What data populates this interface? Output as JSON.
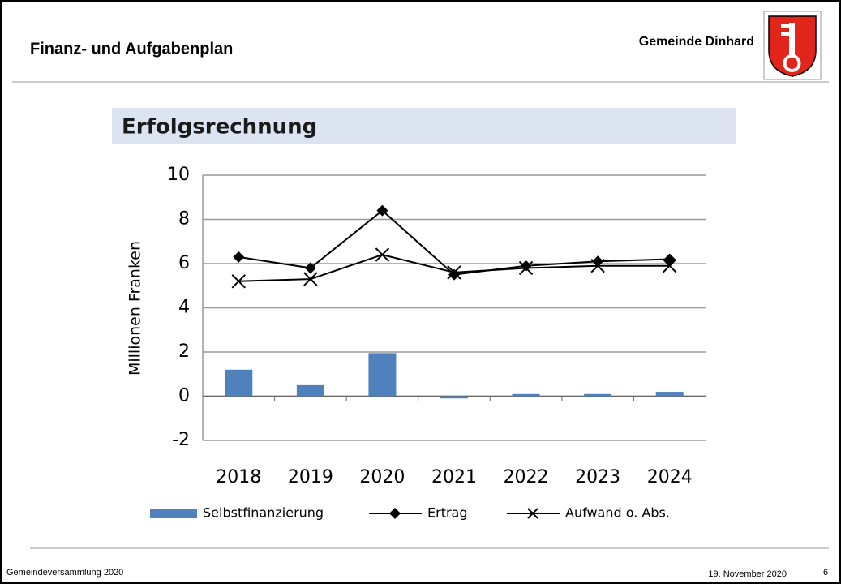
{
  "header": {
    "title": "Finanz- und Aufgabenplan",
    "organization": "Gemeinde Dinhard"
  },
  "footer": {
    "left": "Gemeindeversammlung 2020",
    "date": "19. November 2020",
    "page": "6"
  },
  "chart_data": {
    "type": "combo",
    "title": "Erfolgsrechnung",
    "y_label": "Millionen Franken",
    "categories": [
      "2018",
      "2019",
      "2020",
      "2021",
      "2022",
      "2023",
      "2024"
    ],
    "series": [
      {
        "name": "Selbstfinanzierung",
        "type": "bar",
        "color": "#4f81bd",
        "values": [
          1.2,
          0.5,
          1.95,
          -0.1,
          0.1,
          0.1,
          0.2
        ]
      },
      {
        "name": "Ertrag",
        "type": "line",
        "marker": "diamond",
        "color": "#000000",
        "values": [
          6.3,
          5.8,
          8.4,
          5.5,
          5.9,
          6.1,
          6.2
        ]
      },
      {
        "name": "Aufwand o. Abs.",
        "type": "line",
        "marker": "x",
        "color": "#000000",
        "values": [
          5.2,
          5.3,
          6.4,
          5.6,
          5.8,
          5.9,
          5.9
        ]
      }
    ],
    "ylim": [
      -2,
      10
    ],
    "yticks": [
      -2,
      0,
      2,
      4,
      6,
      8,
      10
    ],
    "grid": true,
    "legend": "bottom"
  }
}
